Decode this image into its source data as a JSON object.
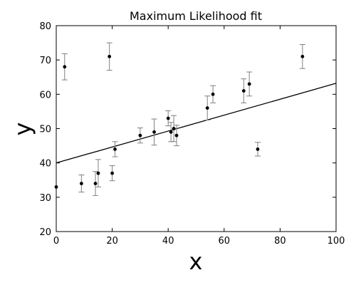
{
  "chart_data": {
    "type": "scatter",
    "title": "Maximum Likelihood fit",
    "xlabel": "x",
    "ylabel": "y",
    "xlim": [
      0,
      100
    ],
    "ylim": [
      20,
      80
    ],
    "xticks": [
      0,
      20,
      40,
      60,
      80,
      100
    ],
    "yticks": [
      20,
      30,
      40,
      50,
      60,
      70,
      80
    ],
    "grid": false,
    "colors": {
      "points": "#000000",
      "errorbars": "#808080",
      "fit_line": "#000000"
    },
    "points": [
      {
        "x": 0,
        "y": 33,
        "err": 0
      },
      {
        "x": 3,
        "y": 68,
        "err": 3.8
      },
      {
        "x": 9,
        "y": 34,
        "err": 2.5
      },
      {
        "x": 14,
        "y": 34,
        "err": 3.5
      },
      {
        "x": 15,
        "y": 37,
        "err": 4
      },
      {
        "x": 19,
        "y": 71,
        "err": 4
      },
      {
        "x": 20,
        "y": 37,
        "err": 2.2
      },
      {
        "x": 21,
        "y": 44,
        "err": 2.2
      },
      {
        "x": 30,
        "y": 48,
        "err": 2.2
      },
      {
        "x": 35,
        "y": 49,
        "err": 3.8
      },
      {
        "x": 40,
        "y": 53,
        "err": 2.2
      },
      {
        "x": 41,
        "y": 49,
        "err": 2.8
      },
      {
        "x": 42,
        "y": 50,
        "err": 3.8
      },
      {
        "x": 43,
        "y": 48,
        "err": 3
      },
      {
        "x": 54,
        "y": 56,
        "err": 3.5
      },
      {
        "x": 56,
        "y": 60,
        "err": 2.5
      },
      {
        "x": 67,
        "y": 61,
        "err": 3.5
      },
      {
        "x": 69,
        "y": 63,
        "err": 3.5
      },
      {
        "x": 72,
        "y": 44,
        "err": 2
      },
      {
        "x": 88,
        "y": 71,
        "err": 3.5
      }
    ],
    "fit_line": {
      "x": [
        0,
        100
      ],
      "y": [
        40,
        63.2
      ]
    }
  }
}
